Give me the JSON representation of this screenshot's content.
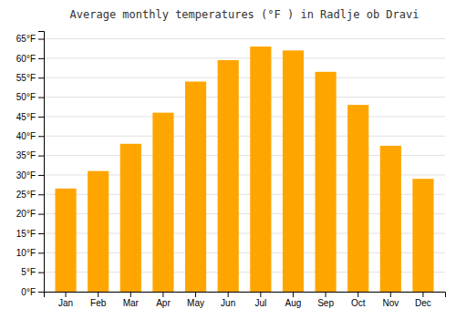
{
  "chart_data": {
    "type": "bar",
    "title": "Average monthly temperatures (°F ) in Radlje ob Dravi",
    "categories": [
      "Jan",
      "Feb",
      "Mar",
      "Apr",
      "May",
      "Jun",
      "Jul",
      "Aug",
      "Sep",
      "Oct",
      "Nov",
      "Dec"
    ],
    "values": [
      26.5,
      31,
      38,
      46,
      54,
      59.5,
      63,
      62,
      56.5,
      48,
      37.5,
      29
    ],
    "color": "#FFA500",
    "ylim": [
      0,
      67
    ],
    "yticks": [
      {
        "value": 0,
        "label": "0°F"
      },
      {
        "value": 5,
        "label": "5°F"
      },
      {
        "value": 10,
        "label": "10°F"
      },
      {
        "value": 15,
        "label": "15°F"
      },
      {
        "value": 20,
        "label": "20°F"
      },
      {
        "value": 25,
        "label": "25°F"
      },
      {
        "value": 30,
        "label": "30°F"
      },
      {
        "value": 35,
        "label": "35°F"
      },
      {
        "value": 40,
        "label": "40°F"
      },
      {
        "value": 45,
        "label": "45°F"
      },
      {
        "value": 50,
        "label": "50°F"
      },
      {
        "value": 55,
        "label": "55°F"
      },
      {
        "value": 60,
        "label": "60°F"
      },
      {
        "value": 65,
        "label": "65°F"
      }
    ],
    "grid": true
  }
}
